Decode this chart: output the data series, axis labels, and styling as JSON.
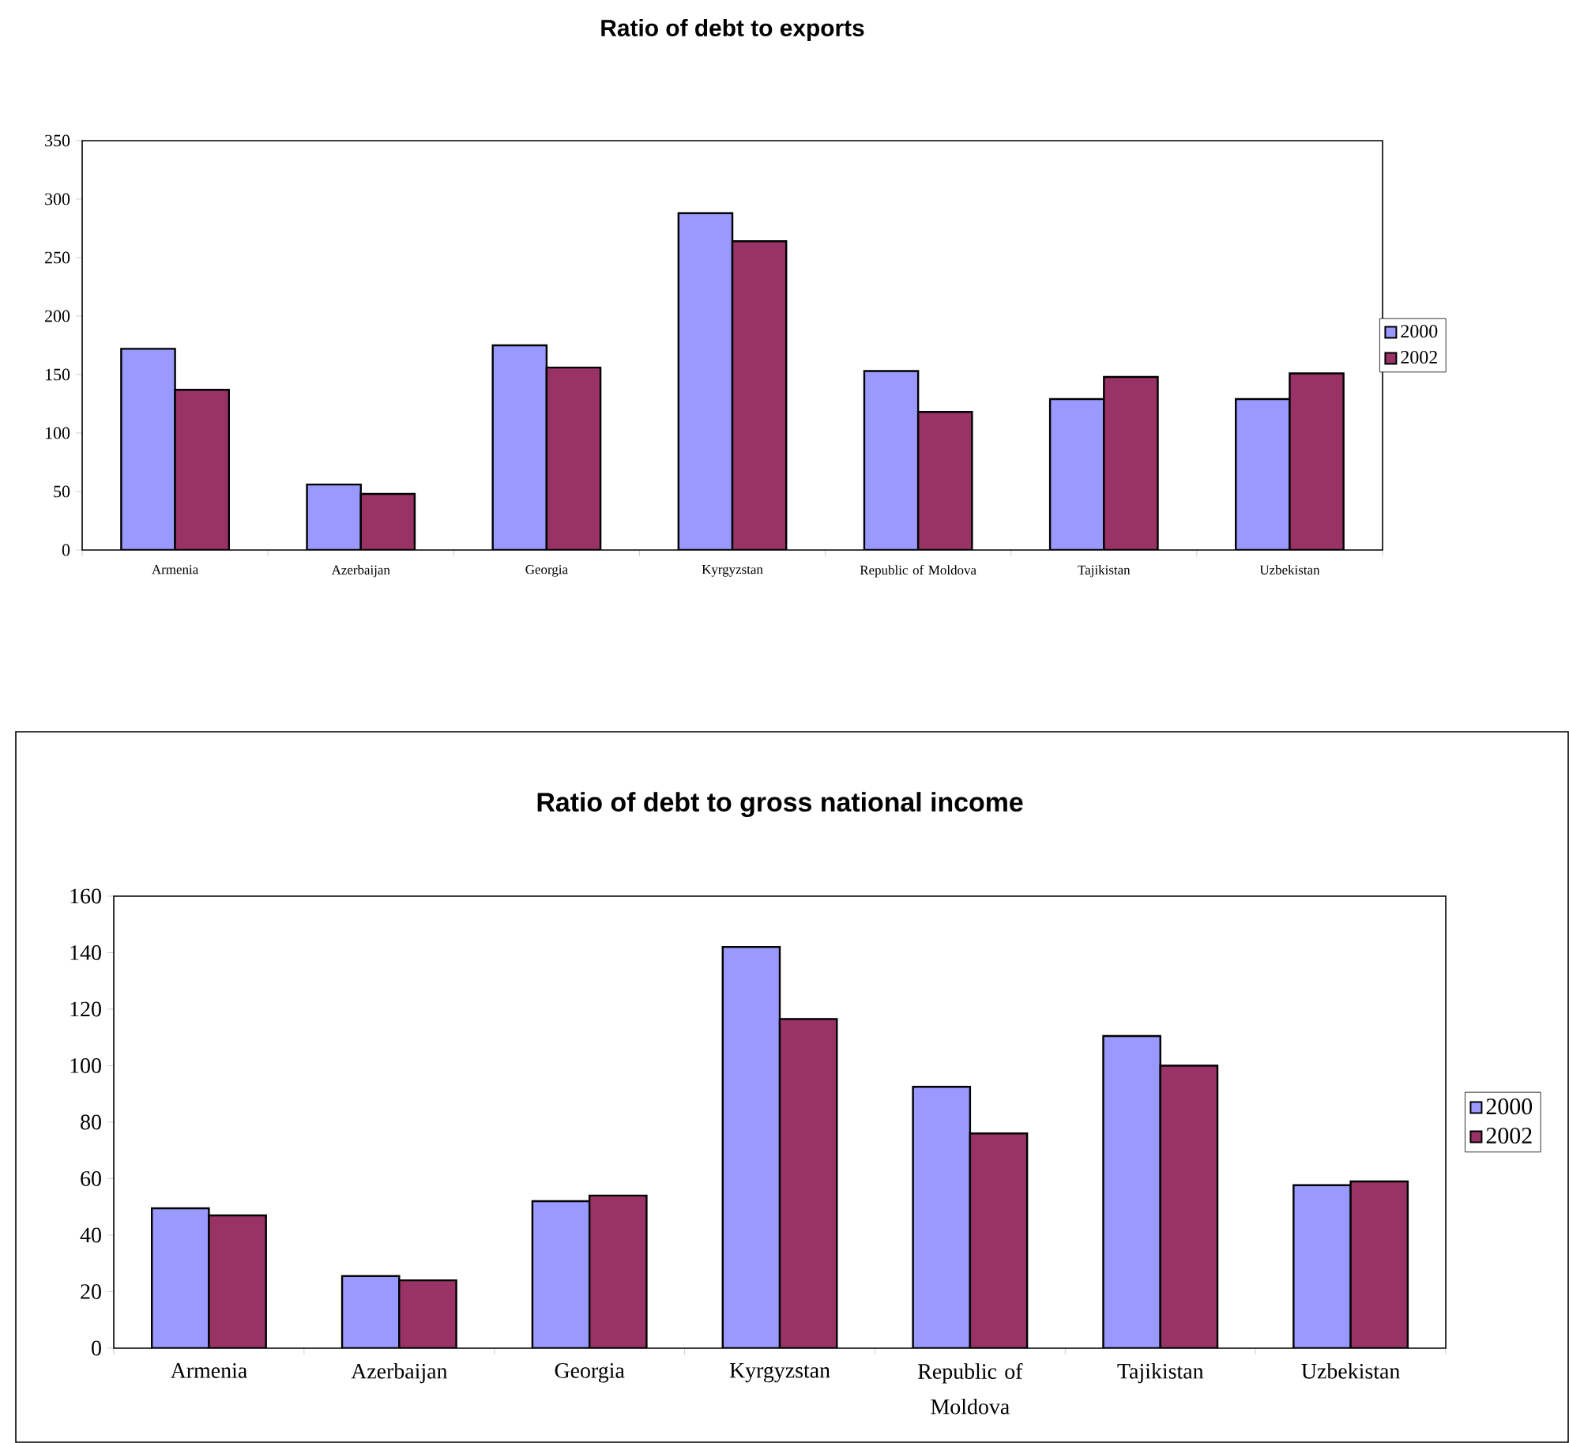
{
  "chart_data": [
    {
      "type": "bar",
      "title": "Ratio of debt to exports",
      "categories": [
        "Armenia",
        "Azerbaijan",
        "Georgia",
        "Kyrgyzstan",
        "Republic of Moldova",
        "Tajikistan",
        "Uzbekistan"
      ],
      "series": [
        {
          "name": "2000",
          "color": "#9999ff",
          "values": [
            172,
            56,
            175,
            288,
            153,
            129,
            129
          ]
        },
        {
          "name": "2002",
          "color": "#993366",
          "values": [
            137,
            48,
            156,
            264,
            118,
            148,
            151
          ]
        }
      ],
      "ylim": [
        0,
        350
      ],
      "yticks": [
        0,
        50,
        100,
        150,
        200,
        250,
        300,
        350
      ],
      "legend": "right"
    },
    {
      "type": "bar",
      "title": "Ratio of debt to gross national income",
      "categories": [
        "Armenia",
        "Azerbaijan",
        "Georgia",
        "Kyrgyzstan",
        "Republic of Moldova",
        "Tajikistan",
        "Uzbekistan"
      ],
      "series": [
        {
          "name": "2000",
          "color": "#9999ff",
          "values": [
            49.5,
            25.5,
            52,
            142,
            92.5,
            110.5,
            57.7
          ]
        },
        {
          "name": "2002",
          "color": "#993366",
          "values": [
            47,
            24,
            54,
            116.5,
            76,
            100,
            59
          ]
        }
      ],
      "ylim": [
        0,
        160
      ],
      "yticks": [
        0,
        20,
        40,
        60,
        80,
        100,
        120,
        140,
        160
      ],
      "legend": "right"
    }
  ]
}
